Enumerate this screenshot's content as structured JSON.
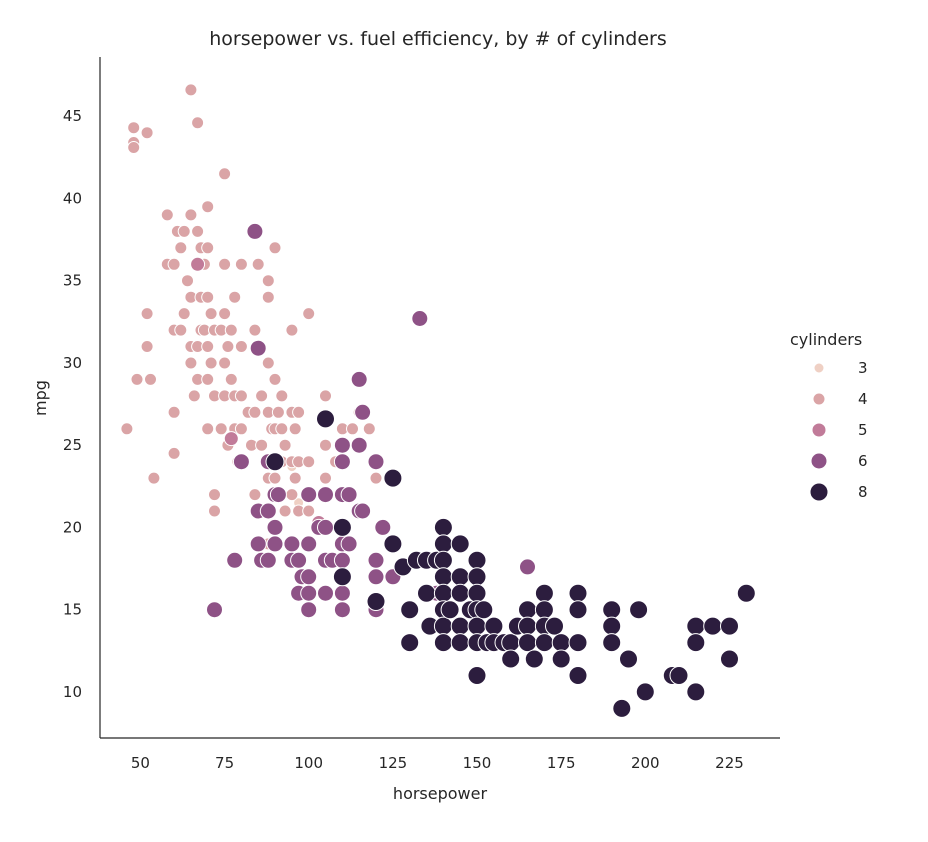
{
  "chart_data": {
    "type": "scatter",
    "title": "horsepower vs. fuel efficiency, by # of cylinders",
    "xlabel": "horsepower",
    "ylabel": "mpg",
    "xlim": [
      38,
      240
    ],
    "ylim": [
      7.2,
      48.6
    ],
    "xticks": [
      "50",
      "75",
      "100",
      "125",
      "150",
      "175",
      "200",
      "225"
    ],
    "yticks": [
      "10",
      "15",
      "20",
      "25",
      "30",
      "35",
      "40",
      "45"
    ],
    "grid": false,
    "legend": {
      "title": "cylinders",
      "placement": "right"
    },
    "series": [
      {
        "name": "3",
        "color": "#efd0c4",
        "size": 5,
        "points": [
          [
            90,
            24
          ],
          [
            95,
            23.7
          ],
          [
            97,
            21.5
          ],
          [
            110,
            18
          ]
        ]
      },
      {
        "name": "4",
        "color": "#daa4a6",
        "size": 6,
        "points": [
          [
            46,
            26
          ],
          [
            48,
            44.3
          ],
          [
            48,
            43.4
          ],
          [
            48,
            43.1
          ],
          [
            49,
            29
          ],
          [
            52,
            44
          ],
          [
            52,
            33
          ],
          [
            52,
            31
          ],
          [
            53,
            29
          ],
          [
            54,
            23
          ],
          [
            58,
            39
          ],
          [
            58,
            36
          ],
          [
            60,
            36
          ],
          [
            60,
            32
          ],
          [
            60,
            27
          ],
          [
            60,
            24.5
          ],
          [
            61,
            38
          ],
          [
            62,
            37
          ],
          [
            62,
            32
          ],
          [
            63,
            38
          ],
          [
            63,
            33
          ],
          [
            64,
            35
          ],
          [
            65,
            46.6
          ],
          [
            65,
            39
          ],
          [
            65,
            34
          ],
          [
            65,
            31
          ],
          [
            65,
            30
          ],
          [
            66,
            28
          ],
          [
            67,
            44.6
          ],
          [
            67,
            38
          ],
          [
            67,
            36
          ],
          [
            67,
            31
          ],
          [
            67,
            29
          ],
          [
            68,
            37
          ],
          [
            68,
            34
          ],
          [
            68,
            32
          ],
          [
            69,
            36
          ],
          [
            69,
            32
          ],
          [
            70,
            39.5
          ],
          [
            70,
            37
          ],
          [
            70,
            34
          ],
          [
            70,
            31
          ],
          [
            70,
            29
          ],
          [
            70,
            26
          ],
          [
            71,
            33
          ],
          [
            71,
            30
          ],
          [
            72,
            32
          ],
          [
            72,
            28
          ],
          [
            72,
            22
          ],
          [
            72,
            21
          ],
          [
            74,
            32
          ],
          [
            74,
            26
          ],
          [
            75,
            41.5
          ],
          [
            75,
            36
          ],
          [
            75,
            33
          ],
          [
            75,
            30
          ],
          [
            75,
            28
          ],
          [
            76,
            31
          ],
          [
            76,
            25
          ],
          [
            77,
            32
          ],
          [
            77,
            29
          ],
          [
            78,
            34
          ],
          [
            78,
            28
          ],
          [
            78,
            26
          ],
          [
            79,
            24
          ],
          [
            80,
            36
          ],
          [
            80,
            31
          ],
          [
            80,
            28
          ],
          [
            80,
            26
          ],
          [
            82,
            27
          ],
          [
            83,
            25
          ],
          [
            84,
            32
          ],
          [
            84,
            27
          ],
          [
            84,
            22
          ],
          [
            85,
            36
          ],
          [
            85,
            31
          ],
          [
            86,
            28
          ],
          [
            86,
            25
          ],
          [
            86,
            21
          ],
          [
            88,
            35
          ],
          [
            88,
            34
          ],
          [
            88,
            30
          ],
          [
            88,
            27
          ],
          [
            88,
            23
          ],
          [
            88,
            19
          ],
          [
            89,
            26
          ],
          [
            90,
            37
          ],
          [
            90,
            29
          ],
          [
            90,
            26
          ],
          [
            90,
            23
          ],
          [
            90,
            20
          ],
          [
            91,
            27
          ],
          [
            92,
            28
          ],
          [
            92,
            26
          ],
          [
            92,
            24
          ],
          [
            93,
            25
          ],
          [
            93,
            21
          ],
          [
            95,
            32
          ],
          [
            95,
            27
          ],
          [
            95,
            24
          ],
          [
            95,
            22
          ],
          [
            95,
            18
          ],
          [
            96,
            26
          ],
          [
            96,
            23
          ],
          [
            97,
            27
          ],
          [
            97,
            24
          ],
          [
            97,
            21
          ],
          [
            100,
            33
          ],
          [
            100,
            24
          ],
          [
            100,
            21
          ],
          [
            105,
            28
          ],
          [
            105,
            25
          ],
          [
            105,
            23
          ],
          [
            108,
            24
          ],
          [
            110,
            26
          ],
          [
            112,
            22
          ],
          [
            113,
            26
          ],
          [
            115,
            27
          ],
          [
            118,
            26
          ],
          [
            120,
            23
          ]
        ]
      },
      {
        "name": "5",
        "color": "#c17b99",
        "size": 7,
        "points": [
          [
            67,
            36
          ],
          [
            77,
            25.4
          ],
          [
            103,
            20.3
          ]
        ]
      },
      {
        "name": "6",
        "color": "#8e5286",
        "size": 8,
        "points": [
          [
            72,
            15
          ],
          [
            78,
            18
          ],
          [
            84,
            38
          ],
          [
            80,
            24
          ],
          [
            85,
            21
          ],
          [
            85,
            19
          ],
          [
            86,
            18
          ],
          [
            88,
            24
          ],
          [
            88,
            21
          ],
          [
            88,
            18
          ],
          [
            90,
            22
          ],
          [
            90,
            20
          ],
          [
            90,
            19
          ],
          [
            91,
            22
          ],
          [
            95,
            19
          ],
          [
            95,
            18
          ],
          [
            97,
            18
          ],
          [
            97,
            16
          ],
          [
            98,
            17
          ],
          [
            100,
            22
          ],
          [
            100,
            19
          ],
          [
            100,
            17
          ],
          [
            100,
            16
          ],
          [
            100,
            15
          ],
          [
            103,
            20
          ],
          [
            105,
            22
          ],
          [
            105,
            20
          ],
          [
            105,
            18
          ],
          [
            105,
            16
          ],
          [
            107,
            18
          ],
          [
            110,
            25
          ],
          [
            110,
            24
          ],
          [
            110,
            22
          ],
          [
            110,
            20
          ],
          [
            110,
            19
          ],
          [
            110,
            18
          ],
          [
            110,
            17
          ],
          [
            110,
            16
          ],
          [
            110,
            15
          ],
          [
            112,
            22
          ],
          [
            112,
            19
          ],
          [
            115,
            29
          ],
          [
            115,
            25
          ],
          [
            115,
            21
          ],
          [
            116,
            21
          ],
          [
            116,
            27
          ],
          [
            120,
            24
          ],
          [
            120,
            18
          ],
          [
            120,
            17
          ],
          [
            120,
            15
          ],
          [
            122,
            20
          ],
          [
            125,
            17
          ],
          [
            133,
            32.7
          ],
          [
            138,
            16
          ],
          [
            145,
            17
          ],
          [
            165,
            17.6
          ],
          [
            85,
            30.9
          ]
        ]
      },
      {
        "name": "8",
        "color": "#2c1d3e",
        "size": 9,
        "points": [
          [
            90,
            24
          ],
          [
            105,
            26.6
          ],
          [
            110,
            20
          ],
          [
            110,
            17
          ],
          [
            120,
            15.5
          ],
          [
            125,
            23
          ],
          [
            125,
            19
          ],
          [
            128,
            17.6
          ],
          [
            130,
            15
          ],
          [
            130,
            13
          ],
          [
            132,
            18
          ],
          [
            135,
            16
          ],
          [
            135,
            18
          ],
          [
            136,
            14
          ],
          [
            138,
            18
          ],
          [
            140,
            20
          ],
          [
            140,
            19
          ],
          [
            140,
            18
          ],
          [
            140,
            17
          ],
          [
            140,
            16
          ],
          [
            140,
            15
          ],
          [
            140,
            14
          ],
          [
            140,
            13
          ],
          [
            142,
            15
          ],
          [
            145,
            19
          ],
          [
            145,
            17
          ],
          [
            145,
            16
          ],
          [
            145,
            14
          ],
          [
            145,
            13
          ],
          [
            148,
            15
          ],
          [
            150,
            18
          ],
          [
            150,
            17
          ],
          [
            150,
            16
          ],
          [
            150,
            15
          ],
          [
            150,
            14
          ],
          [
            150,
            13
          ],
          [
            150,
            11
          ],
          [
            152,
            15
          ],
          [
            153,
            13
          ],
          [
            155,
            14
          ],
          [
            155,
            13
          ],
          [
            158,
            13
          ],
          [
            160,
            13
          ],
          [
            160,
            12
          ],
          [
            162,
            14
          ],
          [
            165,
            15
          ],
          [
            165,
            14
          ],
          [
            165,
            13
          ],
          [
            167,
            12
          ],
          [
            170,
            16
          ],
          [
            170,
            15
          ],
          [
            170,
            14
          ],
          [
            170,
            13
          ],
          [
            173,
            14
          ],
          [
            175,
            13
          ],
          [
            175,
            12
          ],
          [
            180,
            16
          ],
          [
            180,
            15
          ],
          [
            180,
            13
          ],
          [
            180,
            11
          ],
          [
            190,
            15
          ],
          [
            190,
            14
          ],
          [
            190,
            13
          ],
          [
            193,
            9
          ],
          [
            195,
            12
          ],
          [
            198,
            15
          ],
          [
            200,
            10
          ],
          [
            208,
            11
          ],
          [
            210,
            11
          ],
          [
            215,
            14
          ],
          [
            215,
            13
          ],
          [
            215,
            10
          ],
          [
            220,
            14
          ],
          [
            225,
            14
          ],
          [
            225,
            12
          ],
          [
            230,
            16
          ]
        ]
      }
    ]
  }
}
